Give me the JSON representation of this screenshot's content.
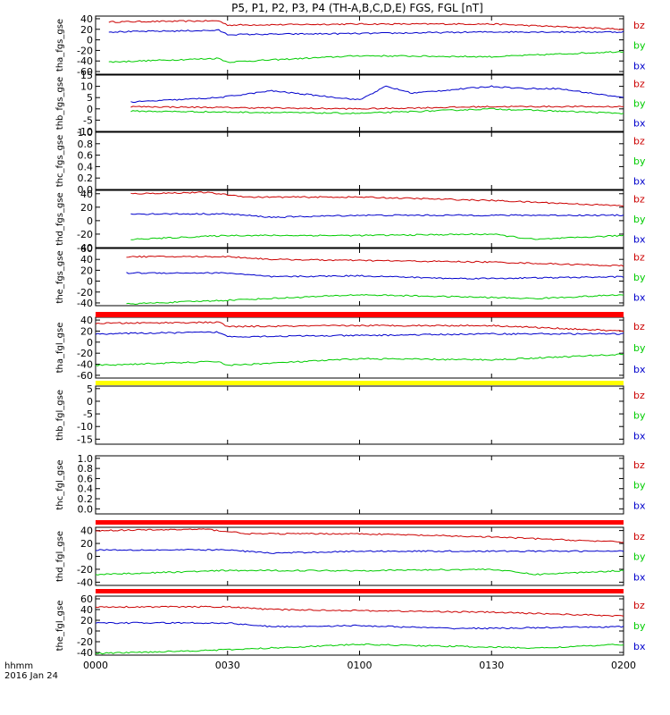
{
  "title": "P5, P1, P2, P3, P4 (TH-A,B,C,D,E) FGS, FGL [nT]",
  "footer": {
    "x_tick_label": "hhmm",
    "date_label": "2016 Jan 24"
  },
  "colors": {
    "bz": "#cc0000",
    "by": "#00cc00",
    "bx": "#0000cc",
    "bar_red": "#ff0000",
    "bar_yellow": "#ffff00",
    "axis": "#000000"
  },
  "chart_data": {
    "type": "line",
    "x_unit": "hhmm",
    "x_range": [
      "0000",
      "0200"
    ],
    "x_ticks": [
      "0000",
      "0030",
      "0100",
      "0130",
      "0200"
    ],
    "legend": [
      "bz",
      "by",
      "bx"
    ],
    "legend_position": "right",
    "panels": [
      {
        "ylabel": "tha_fgs_gse",
        "ylim": [
          -65,
          45
        ],
        "yticks": [
          "40",
          "20",
          "0",
          "-20",
          "-40",
          "-60"
        ],
        "has_data": true,
        "x_start": "0003",
        "series": [
          {
            "name": "bz",
            "knots": [
              [
                3,
                34
              ],
              [
                28,
                36
              ],
              [
                30,
                28
              ],
              [
                60,
                30
              ],
              [
                90,
                30
              ],
              [
                120,
                20
              ]
            ]
          },
          {
            "name": "by",
            "knots": [
              [
                3,
                -42
              ],
              [
                28,
                -35
              ],
              [
                30,
                -42
              ],
              [
                60,
                -30
              ],
              [
                90,
                -32
              ],
              [
                120,
                -22
              ]
            ]
          },
          {
            "name": "bx",
            "knots": [
              [
                3,
                15
              ],
              [
                28,
                18
              ],
              [
                30,
                10
              ],
              [
                60,
                12
              ],
              [
                90,
                15
              ],
              [
                120,
                15
              ]
            ]
          }
        ]
      },
      {
        "ylabel": "thb_fgs_gse",
        "ylim": [
          -10,
          15
        ],
        "yticks": [
          "15",
          "10",
          "5",
          "0",
          "-5",
          "-10"
        ],
        "has_data": true,
        "x_start": "0008",
        "series": [
          {
            "name": "bz",
            "knots": [
              [
                8,
                1
              ],
              [
                60,
                0
              ],
              [
                90,
                1
              ],
              [
                120,
                1
              ]
            ]
          },
          {
            "name": "by",
            "knots": [
              [
                8,
                -1
              ],
              [
                60,
                -2
              ],
              [
                90,
                0
              ],
              [
                120,
                -2
              ]
            ]
          },
          {
            "name": "bx",
            "knots": [
              [
                8,
                3
              ],
              [
                28,
                5
              ],
              [
                40,
                8
              ],
              [
                60,
                4
              ],
              [
                66,
                10
              ],
              [
                72,
                7
              ],
              [
                90,
                10
              ],
              [
                98,
                9
              ],
              [
                105,
                9
              ],
              [
                120,
                5
              ]
            ]
          }
        ]
      },
      {
        "ylabel": "thc_fgs_gse",
        "ylim": [
          0.0,
          1.0
        ],
        "yticks": [
          "1.0",
          "0.8",
          "0.6",
          "0.4",
          "0.2",
          "0.0"
        ],
        "has_data": false,
        "series": []
      },
      {
        "ylabel": "thd_fgs_gse",
        "ylim": [
          -40,
          45
        ],
        "yticks": [
          "40",
          "20",
          "0",
          "-20",
          "-40"
        ],
        "has_data": true,
        "x_start": "0008",
        "series": [
          {
            "name": "bz",
            "knots": [
              [
                8,
                40
              ],
              [
                25,
                42
              ],
              [
                35,
                35
              ],
              [
                60,
                35
              ],
              [
                90,
                30
              ],
              [
                120,
                22
              ]
            ]
          },
          {
            "name": "by",
            "knots": [
              [
                8,
                -28
              ],
              [
                30,
                -22
              ],
              [
                60,
                -22
              ],
              [
                90,
                -20
              ],
              [
                100,
                -28
              ],
              [
                120,
                -22
              ]
            ]
          },
          {
            "name": "bx",
            "knots": [
              [
                8,
                10
              ],
              [
                30,
                10
              ],
              [
                40,
                5
              ],
              [
                60,
                8
              ],
              [
                90,
                8
              ],
              [
                120,
                8
              ]
            ]
          }
        ]
      },
      {
        "ylabel": "the_fgs_gse",
        "ylim": [
          -45,
          60
        ],
        "yticks": [
          "60",
          "40",
          "20",
          "0",
          "-20",
          "-40"
        ],
        "has_data": true,
        "x_start": "0007",
        "series": [
          {
            "name": "bz",
            "knots": [
              [
                7,
                45
              ],
              [
                30,
                45
              ],
              [
                40,
                40
              ],
              [
                60,
                38
              ],
              [
                90,
                35
              ],
              [
                120,
                28
              ]
            ]
          },
          {
            "name": "by",
            "knots": [
              [
                7,
                -42
              ],
              [
                30,
                -35
              ],
              [
                60,
                -25
              ],
              [
                90,
                -30
              ],
              [
                100,
                -32
              ],
              [
                120,
                -25
              ]
            ]
          },
          {
            "name": "bx",
            "knots": [
              [
                7,
                15
              ],
              [
                30,
                15
              ],
              [
                40,
                8
              ],
              [
                60,
                10
              ],
              [
                80,
                5
              ],
              [
                90,
                5
              ],
              [
                120,
                8
              ]
            ]
          }
        ]
      },
      {
        "ylabel": "tha_fgl_gse",
        "ylim": [
          -65,
          45
        ],
        "yticks": [
          "40",
          "20",
          "0",
          "-20",
          "-40",
          "-60"
        ],
        "has_data": true,
        "x_start": "0000",
        "series": [
          {
            "name": "bz",
            "knots": [
              [
                0,
                34
              ],
              [
                28,
                36
              ],
              [
                30,
                28
              ],
              [
                60,
                30
              ],
              [
                90,
                30
              ],
              [
                120,
                20
              ]
            ]
          },
          {
            "name": "by",
            "knots": [
              [
                0,
                -42
              ],
              [
                28,
                -35
              ],
              [
                30,
                -42
              ],
              [
                60,
                -30
              ],
              [
                90,
                -32
              ],
              [
                120,
                -22
              ]
            ]
          },
          {
            "name": "bx",
            "knots": [
              [
                0,
                15
              ],
              [
                28,
                18
              ],
              [
                30,
                10
              ],
              [
                60,
                12
              ],
              [
                90,
                15
              ],
              [
                120,
                15
              ]
            ]
          }
        ]
      },
      {
        "ylabel": "thb_fgl_gse",
        "ylim": [
          -17,
          6
        ],
        "yticks": [
          "5",
          "0",
          "-5",
          "-10",
          "-15"
        ],
        "has_data": false,
        "series": []
      },
      {
        "ylabel": "thc_fgl_gse",
        "ylim": [
          -0.1,
          1.05
        ],
        "yticks": [
          "1.0",
          "0.8",
          "0.6",
          "0.4",
          "0.2",
          "0.0"
        ],
        "has_data": false,
        "series": []
      },
      {
        "ylabel": "thd_fgl_gse",
        "ylim": [
          -45,
          45
        ],
        "yticks": [
          "40",
          "20",
          "0",
          "-20",
          "-40"
        ],
        "has_data": true,
        "x_start": "0000",
        "series": [
          {
            "name": "bz",
            "knots": [
              [
                0,
                40
              ],
              [
                25,
                42
              ],
              [
                35,
                35
              ],
              [
                60,
                35
              ],
              [
                90,
                30
              ],
              [
                120,
                22
              ]
            ]
          },
          {
            "name": "by",
            "knots": [
              [
                0,
                -28
              ],
              [
                30,
                -22
              ],
              [
                60,
                -22
              ],
              [
                90,
                -20
              ],
              [
                100,
                -28
              ],
              [
                120,
                -22
              ]
            ]
          },
          {
            "name": "bx",
            "knots": [
              [
                0,
                10
              ],
              [
                30,
                10
              ],
              [
                40,
                5
              ],
              [
                60,
                8
              ],
              [
                90,
                8
              ],
              [
                120,
                8
              ]
            ]
          }
        ]
      },
      {
        "ylabel": "the_fgl_gse",
        "ylim": [
          -45,
          65
        ],
        "yticks": [
          "60",
          "40",
          "20",
          "0",
          "-20",
          "-40"
        ],
        "has_data": true,
        "x_start": "0000",
        "series": [
          {
            "name": "bz",
            "knots": [
              [
                0,
                45
              ],
              [
                30,
                45
              ],
              [
                40,
                40
              ],
              [
                60,
                38
              ],
              [
                90,
                35
              ],
              [
                120,
                28
              ]
            ]
          },
          {
            "name": "by",
            "knots": [
              [
                0,
                -42
              ],
              [
                30,
                -35
              ],
              [
                60,
                -25
              ],
              [
                90,
                -30
              ],
              [
                100,
                -32
              ],
              [
                120,
                -25
              ]
            ]
          },
          {
            "name": "bx",
            "knots": [
              [
                0,
                15
              ],
              [
                30,
                15
              ],
              [
                40,
                8
              ],
              [
                60,
                10
              ],
              [
                80,
                5
              ],
              [
                90,
                5
              ],
              [
                120,
                8
              ]
            ]
          }
        ]
      }
    ],
    "status_bars": [
      {
        "color": "red",
        "after_panel": "the_fgs_gse"
      },
      {
        "color": "yellow",
        "after_panel": "tha_fgl_gse"
      },
      {
        "color": "red",
        "after_panel": "thc_fgl_gse"
      },
      {
        "color": "red",
        "after_panel": "thd_fgl_gse"
      }
    ]
  }
}
